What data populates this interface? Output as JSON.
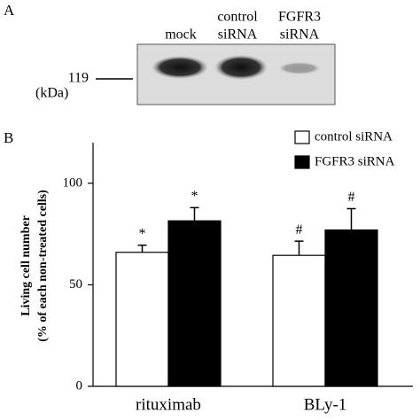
{
  "panel_a": {
    "label": "A",
    "lanes": [
      [
        "mock"
      ],
      [
        "control",
        "siRNA"
      ],
      [
        "FGFR3",
        "siRNA"
      ]
    ],
    "marker": "119",
    "unit": "(kDa)"
  },
  "chart_data": {
    "type": "bar",
    "label": "B",
    "ylabel": [
      "Living cell number",
      "(% of each non-treated cells)"
    ],
    "categories": [
      "rituximab",
      "BLy-1"
    ],
    "series": [
      {
        "name": "control siRNA",
        "color": "#ffffff",
        "values": [
          66,
          64.5
        ],
        "errors": [
          3.5,
          7
        ],
        "annotations": [
          "*",
          "#"
        ]
      },
      {
        "name": "FGFR3 siRNA",
        "color": "#000000",
        "values": [
          81.5,
          77
        ],
        "errors": [
          6.5,
          10.5
        ],
        "annotations": [
          "*",
          "#"
        ]
      }
    ],
    "ylim": [
      0,
      120
    ],
    "yticks": [
      0,
      50,
      100
    ],
    "legend": "top-right"
  }
}
